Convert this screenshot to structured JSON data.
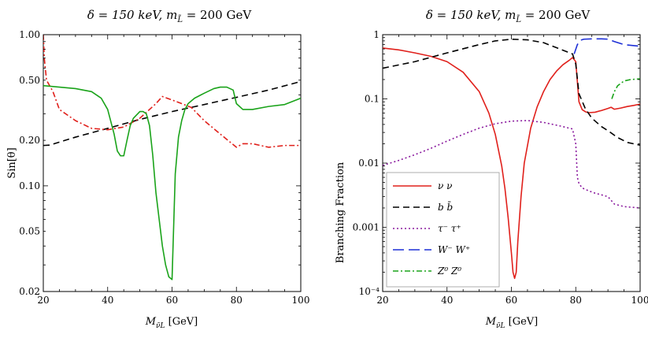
{
  "chart_data": [
    {
      "type": "line",
      "title": "δ = 150 keV,  m",
      "title_sub": "L̃",
      "title_tail": " = 200 GeV",
      "xlabel": "M",
      "xlabel_sub": "ν̃L",
      "xlabel_tail": " [GeV]",
      "ylabel": "Sin[θ]",
      "xlim": [
        20,
        100
      ],
      "ylim": [
        0.02,
        1.0
      ],
      "yscale": "log",
      "xticks": [
        20,
        40,
        60,
        80,
        100
      ],
      "xtick_labels": [
        "20",
        "40",
        "60",
        "80",
        "100"
      ],
      "yticks": [
        0.02,
        0.05,
        0.1,
        0.2,
        0.5,
        1.0
      ],
      "ytick_labels": [
        "0.02",
        "0.05",
        "0.10",
        "0.20",
        "0.50",
        "1.00"
      ],
      "series": [
        {
          "name": "black dashed",
          "color": "#000000",
          "dash": "8,5",
          "x": [
            20,
            22,
            30,
            40,
            50,
            60,
            70,
            80,
            90,
            100
          ],
          "y": [
            0.185,
            0.186,
            0.21,
            0.24,
            0.275,
            0.31,
            0.345,
            0.385,
            0.43,
            0.49
          ]
        },
        {
          "name": "red dot-dashed",
          "color": "#e0201b",
          "dash": "7,3,2,3",
          "x": [
            20,
            20.3,
            21,
            23,
            25,
            30,
            35,
            40,
            45,
            50,
            53,
            55,
            57,
            60,
            63,
            66,
            70,
            75,
            80,
            82,
            85,
            90,
            95,
            100
          ],
          "y": [
            1.0,
            0.7,
            0.5,
            0.42,
            0.32,
            0.27,
            0.24,
            0.235,
            0.245,
            0.28,
            0.32,
            0.35,
            0.39,
            0.37,
            0.35,
            0.33,
            0.27,
            0.22,
            0.18,
            0.19,
            0.19,
            0.18,
            0.185,
            0.185
          ]
        },
        {
          "name": "green solid",
          "color": "#1aa31a",
          "dash": "",
          "x": [
            20,
            25,
            30,
            35,
            38,
            40,
            42,
            43,
            44,
            45,
            46,
            47,
            48,
            50,
            51,
            52,
            53,
            54,
            55,
            56,
            57,
            58,
            59,
            60,
            61,
            62,
            63,
            64,
            65,
            67,
            70,
            73,
            75,
            77,
            79,
            80,
            82,
            85,
            90,
            95,
            100
          ],
          "y": [
            0.46,
            0.45,
            0.44,
            0.42,
            0.38,
            0.32,
            0.22,
            0.17,
            0.158,
            0.158,
            0.2,
            0.25,
            0.28,
            0.31,
            0.31,
            0.3,
            0.25,
            0.16,
            0.09,
            0.06,
            0.04,
            0.03,
            0.025,
            0.024,
            0.12,
            0.21,
            0.27,
            0.32,
            0.35,
            0.38,
            0.41,
            0.44,
            0.45,
            0.45,
            0.43,
            0.35,
            0.32,
            0.32,
            0.335,
            0.345,
            0.38
          ]
        }
      ]
    },
    {
      "type": "line",
      "title": "δ = 150 keV,  m",
      "title_sub": "L̃",
      "title_tail": " = 200 GeV",
      "xlabel": "M",
      "xlabel_sub": "ν̃L",
      "xlabel_tail": " [GeV]",
      "ylabel": "Branching Fraction",
      "xlim": [
        20,
        100
      ],
      "ylim": [
        0.0001,
        1
      ],
      "yscale": "log",
      "xticks": [
        20,
        40,
        60,
        80,
        100
      ],
      "xtick_labels": [
        "20",
        "40",
        "60",
        "80",
        "100"
      ],
      "yticks": [
        0.0001,
        0.001,
        0.01,
        0.1,
        1
      ],
      "ytick_labels": [
        "10⁻⁴",
        "0.001",
        "0.01",
        "0.1",
        "1"
      ],
      "legend_position": "bottom-left",
      "series": [
        {
          "name": "ν ν",
          "color": "#e0201b",
          "dash": "",
          "x": [
            20,
            25,
            30,
            35,
            40,
            45,
            50,
            53,
            55,
            57,
            58,
            59,
            60,
            60.5,
            61,
            61.5,
            62,
            63,
            64,
            66,
            68,
            70,
            72,
            74,
            76,
            78,
            79,
            80,
            81,
            82,
            83,
            84,
            86,
            88,
            90,
            91,
            92,
            94,
            96,
            98,
            100
          ],
          "y": [
            0.62,
            0.58,
            0.52,
            0.46,
            0.38,
            0.26,
            0.13,
            0.06,
            0.028,
            0.009,
            0.004,
            0.0014,
            0.0004,
            0.0002,
            0.00016,
            0.0002,
            0.0006,
            0.003,
            0.01,
            0.035,
            0.075,
            0.13,
            0.2,
            0.27,
            0.34,
            0.4,
            0.44,
            0.38,
            0.09,
            0.068,
            0.063,
            0.061,
            0.062,
            0.066,
            0.071,
            0.074,
            0.069,
            0.072,
            0.076,
            0.079,
            0.083
          ]
        },
        {
          "name": "b b̄",
          "color": "#000000",
          "dash": "8,5",
          "x": [
            20,
            30,
            40,
            50,
            55,
            60,
            65,
            70,
            75,
            79,
            80,
            81,
            83,
            85,
            88,
            90,
            93,
            96,
            100
          ],
          "y": [
            0.3,
            0.38,
            0.52,
            0.7,
            0.8,
            0.85,
            0.83,
            0.75,
            0.6,
            0.5,
            0.35,
            0.12,
            0.07,
            0.05,
            0.037,
            0.032,
            0.025,
            0.021,
            0.019
          ]
        },
        {
          "name": "τ⁻ τ⁺",
          "color": "#8a1a9e",
          "dash": "2,3",
          "x": [
            20,
            25,
            30,
            35,
            40,
            45,
            50,
            55,
            60,
            65,
            70,
            75,
            79,
            80,
            80.5,
            81,
            82,
            84,
            86,
            88,
            90,
            92,
            95,
            100
          ],
          "y": [
            0.0092,
            0.011,
            0.0135,
            0.017,
            0.022,
            0.028,
            0.035,
            0.041,
            0.045,
            0.046,
            0.043,
            0.038,
            0.034,
            0.02,
            0.006,
            0.0048,
            0.0041,
            0.0037,
            0.0034,
            0.0032,
            0.003,
            0.0023,
            0.0021,
            0.002
          ]
        },
        {
          "name": "W⁻ W⁺",
          "color": "#1d2fd6",
          "dash": "14,6",
          "x": [
            79.5,
            80.5,
            81.5,
            82.5,
            85,
            88,
            90,
            92,
            95,
            100
          ],
          "y": [
            0.5,
            0.7,
            0.82,
            0.85,
            0.86,
            0.86,
            0.85,
            0.78,
            0.7,
            0.66
          ]
        },
        {
          "name": "Z⁰ Z⁰",
          "color": "#1aa31a",
          "dash": "7,3,2,3",
          "x": [
            91.2,
            92,
            93,
            95,
            97,
            100
          ],
          "y": [
            0.1,
            0.13,
            0.16,
            0.19,
            0.2,
            0.205
          ]
        }
      ]
    }
  ]
}
